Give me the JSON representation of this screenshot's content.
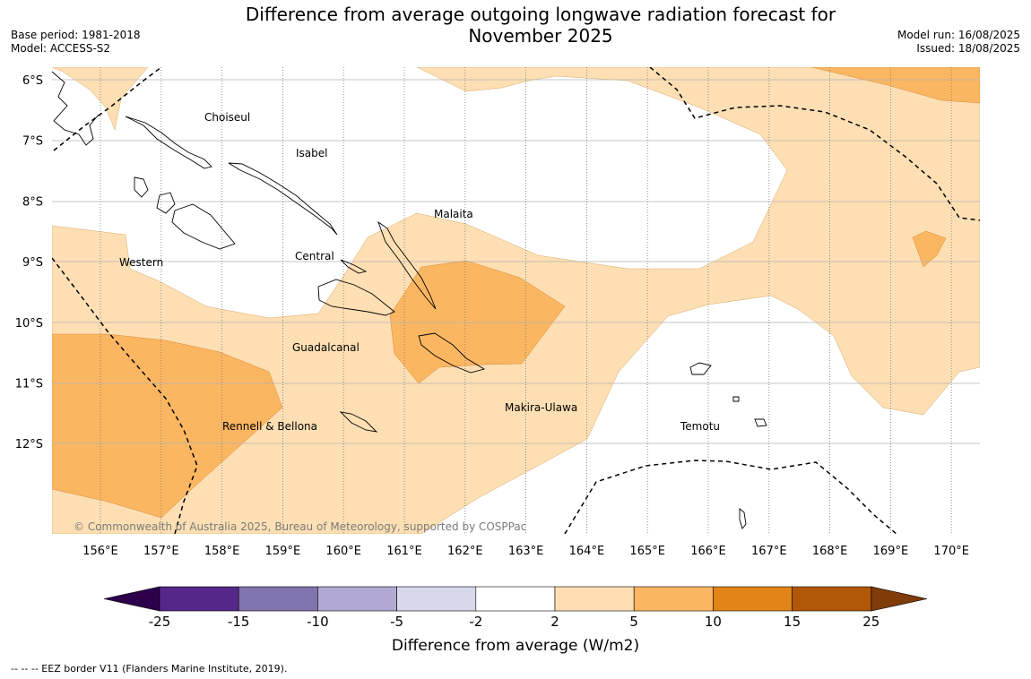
{
  "header": {
    "title_line1": "Difference from average outgoing longwave radiation forecast for",
    "title_line2": "November 2025",
    "base_period": "Base period: 1981-2018",
    "model": "Model: ACCESS-S2",
    "model_run": "Model run: 16/08/2025",
    "issued": "Issued: 18/08/2025"
  },
  "map": {
    "lat_ticks": [
      "6°S",
      "7°S",
      "8°S",
      "9°S",
      "10°S",
      "11°S",
      "12°S"
    ],
    "lon_ticks": [
      "156°E",
      "157°E",
      "158°E",
      "159°E",
      "160°E",
      "161°E",
      "162°E",
      "163°E",
      "164°E",
      "165°E",
      "166°E",
      "167°E",
      "168°E",
      "169°E",
      "170°E"
    ],
    "provinces": [
      "Choiseul",
      "Isabel",
      "Malaita",
      "Western",
      "Central",
      "Guadalcanal",
      "Makira-Ulawa",
      "Rennell & Bellona",
      "Temotu"
    ],
    "copyright": "© Commonwealth of Australia 2025, Bureau of Meteorology, supported by COSPPac"
  },
  "colorbar": {
    "ticks": [
      "-25",
      "-15",
      "-10",
      "-5",
      "-2",
      "2",
      "5",
      "10",
      "15",
      "25"
    ],
    "colors": [
      "#552788",
      "#8173ad",
      "#b1a9d2",
      "#d8d8eb",
      "#ffffff",
      "#fddfb3",
      "#fbb661",
      "#e18519",
      "#b15806"
    ],
    "under_color": "#2d004b",
    "over_color": "#7f3b08",
    "label": "Difference from average (W/m2)"
  },
  "footnote": "--  --  -- EEZ border V11 (Flanders Marine Institute, 2019)."
}
